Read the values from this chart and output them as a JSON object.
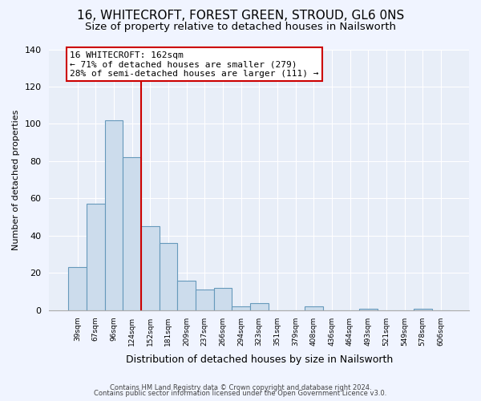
{
  "title": "16, WHITECROFT, FOREST GREEN, STROUD, GL6 0NS",
  "subtitle": "Size of property relative to detached houses in Nailsworth",
  "xlabel": "Distribution of detached houses by size in Nailsworth",
  "ylabel": "Number of detached properties",
  "bar_labels": [
    "39sqm",
    "67sqm",
    "96sqm",
    "124sqm",
    "152sqm",
    "181sqm",
    "209sqm",
    "237sqm",
    "266sqm",
    "294sqm",
    "323sqm",
    "351sqm",
    "379sqm",
    "408sqm",
    "436sqm",
    "464sqm",
    "493sqm",
    "521sqm",
    "549sqm",
    "578sqm",
    "606sqm"
  ],
  "bar_values": [
    23,
    57,
    102,
    82,
    45,
    36,
    16,
    11,
    12,
    2,
    4,
    0,
    0,
    2,
    0,
    0,
    1,
    0,
    0,
    1,
    0
  ],
  "bar_color": "#ccdcec",
  "bar_edge_color": "#6699bb",
  "ylim": [
    0,
    140
  ],
  "yticks": [
    0,
    20,
    40,
    60,
    80,
    100,
    120,
    140
  ],
  "ref_line_x": 3.5,
  "annotation_title": "16 WHITECROFT: 162sqm",
  "annotation_line1": "← 71% of detached houses are smaller (279)",
  "annotation_line2": "28% of semi-detached houses are larger (111) →",
  "annotation_box_color": "#ffffff",
  "annotation_box_edge": "#cc0000",
  "ref_line_color": "#cc0000",
  "footer1": "Contains HM Land Registry data © Crown copyright and database right 2024.",
  "footer2": "Contains public sector information licensed under the Open Government Licence v3.0.",
  "background_color": "#f0f4ff",
  "plot_bg_color": "#e8eef8",
  "grid_color": "#ffffff",
  "title_fontsize": 11,
  "subtitle_fontsize": 9.5,
  "xlabel_fontsize": 9,
  "ylabel_fontsize": 8
}
